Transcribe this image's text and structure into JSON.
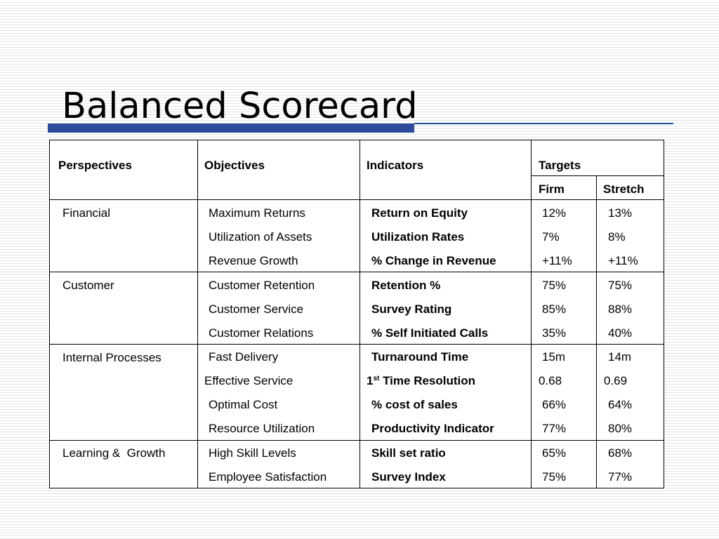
{
  "title": "Balanced Scorecard",
  "colors": {
    "accent": "#2b4c9b"
  },
  "headers": {
    "perspectives": "Perspectives",
    "objectives": "Objectives",
    "indicators": "Indicators",
    "targets": "Targets",
    "firm": "Firm",
    "stretch": "Stretch"
  },
  "perspectives": [
    "Financial",
    "Customer",
    "Internal Processes",
    "Learning &  Growth"
  ],
  "rows": [
    {
      "objective": "Maximum Returns",
      "indicator": "Return on Equity",
      "firm": "12%",
      "stretch": "13%"
    },
    {
      "objective": "Utilization of Assets",
      "indicator": "Utilization Rates",
      "firm": "7%",
      "stretch": "8%"
    },
    {
      "objective": "Revenue Growth",
      "indicator": "% Change in Revenue",
      "firm": "+11%",
      "stretch": "+11%"
    },
    {
      "objective": "Customer Retention",
      "indicator": "Retention %",
      "firm": "75%",
      "stretch": "75%"
    },
    {
      "objective": "Customer Service",
      "indicator": "Survey Rating",
      "firm": "85%",
      "stretch": "88%"
    },
    {
      "objective": "Customer Relations",
      "indicator": "% Self Initiated Calls",
      "firm": "35%",
      "stretch": "40%"
    },
    {
      "objective": "Fast Delivery",
      "indicator": "Turnaround Time",
      "firm": "15m",
      "stretch": "14m"
    },
    {
      "objective": "Effective Service",
      "indicator_prefix": "1",
      "indicator_sup": "st",
      "indicator": " Time Resolution",
      "firm": "0.68",
      "stretch": "0.69"
    },
    {
      "objective": "Optimal Cost",
      "indicator": "% cost of sales",
      "firm": "66%",
      "stretch": "64%"
    },
    {
      "objective": "Resource Utilization",
      "indicator": "Productivity Indicator",
      "firm": "77%",
      "stretch": "80%"
    },
    {
      "objective": "High Skill Levels",
      "indicator": "Skill set ratio",
      "firm": "65%",
      "stretch": "68%"
    },
    {
      "objective": "Employee Satisfaction",
      "indicator": "Survey Index",
      "firm": "75%",
      "stretch": "77%"
    }
  ]
}
